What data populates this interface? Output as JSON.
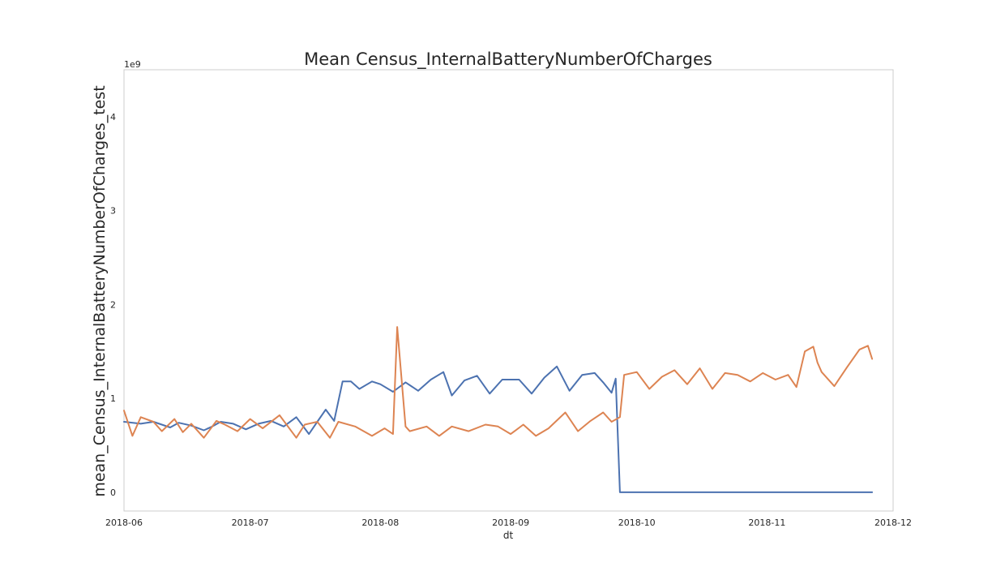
{
  "chart_data": {
    "type": "line",
    "title": "Mean Census_InternalBatteryNumberOfCharges",
    "xlabel": "dt",
    "ylabel": "mean_Census_InternalBatteryNumberOfCharges_test",
    "y_offset_label": "1e9",
    "x_range": [
      "2018-06-01",
      "2018-12-01"
    ],
    "ylim": [
      -0.2,
      4.5
    ],
    "x_ticks": [
      "2018-06",
      "2018-07",
      "2018-08",
      "2018-09",
      "2018-10",
      "2018-11",
      "2018-12"
    ],
    "x_tick_dates": [
      "2018-06-01",
      "2018-07-01",
      "2018-08-01",
      "2018-09-01",
      "2018-10-01",
      "2018-11-01",
      "2018-12-01"
    ],
    "y_ticks": [
      0,
      1,
      2,
      3,
      4
    ],
    "y_tick_labels": [
      "0",
      "1",
      "2",
      "3",
      "4"
    ],
    "grid": false,
    "series": [
      {
        "color": "#4c72b0",
        "x": [
          "2018-06-01",
          "2018-06-05",
          "2018-06-08",
          "2018-06-12",
          "2018-06-14",
          "2018-06-17",
          "2018-06-20",
          "2018-06-22",
          "2018-06-24",
          "2018-06-27",
          "2018-06-30",
          "2018-07-03",
          "2018-07-06",
          "2018-07-09",
          "2018-07-12",
          "2018-07-15",
          "2018-07-17",
          "2018-07-19",
          "2018-07-21",
          "2018-07-23",
          "2018-07-25",
          "2018-07-27",
          "2018-07-30",
          "2018-08-01",
          "2018-08-04",
          "2018-08-07",
          "2018-08-10",
          "2018-08-13",
          "2018-08-16",
          "2018-08-18",
          "2018-08-21",
          "2018-08-24",
          "2018-08-27",
          "2018-08-30",
          "2018-09-03",
          "2018-09-06",
          "2018-09-09",
          "2018-09-12",
          "2018-09-15",
          "2018-09-18",
          "2018-09-21",
          "2018-09-23",
          "2018-09-25",
          "2018-09-26",
          "2018-09-27",
          "2018-10-05",
          "2018-10-20",
          "2018-11-01",
          "2018-11-15",
          "2018-11-26"
        ],
        "values": [
          0.75,
          0.73,
          0.75,
          0.69,
          0.74,
          0.71,
          0.66,
          0.7,
          0.75,
          0.73,
          0.67,
          0.73,
          0.76,
          0.7,
          0.8,
          0.62,
          0.75,
          0.88,
          0.76,
          1.18,
          1.18,
          1.1,
          1.18,
          1.15,
          1.07,
          1.17,
          1.08,
          1.2,
          1.28,
          1.03,
          1.19,
          1.24,
          1.05,
          1.2,
          1.2,
          1.05,
          1.22,
          1.34,
          1.08,
          1.25,
          1.27,
          1.17,
          1.06,
          1.21,
          0,
          0,
          0,
          0,
          0,
          0
        ]
      },
      {
        "color": "#dd8452",
        "x": [
          "2018-06-01",
          "2018-06-03",
          "2018-06-05",
          "2018-06-08",
          "2018-06-10",
          "2018-06-13",
          "2018-06-15",
          "2018-06-17",
          "2018-06-20",
          "2018-06-23",
          "2018-06-25",
          "2018-06-28",
          "2018-07-01",
          "2018-07-04",
          "2018-07-08",
          "2018-07-12",
          "2018-07-14",
          "2018-07-17",
          "2018-07-20",
          "2018-07-22",
          "2018-07-26",
          "2018-07-30",
          "2018-08-02",
          "2018-08-04",
          "2018-08-05",
          "2018-08-07",
          "2018-08-08",
          "2018-08-12",
          "2018-08-15",
          "2018-08-18",
          "2018-08-22",
          "2018-08-26",
          "2018-08-29",
          "2018-09-01",
          "2018-09-04",
          "2018-09-07",
          "2018-09-10",
          "2018-09-14",
          "2018-09-17",
          "2018-09-20",
          "2018-09-23",
          "2018-09-25",
          "2018-09-27",
          "2018-09-28",
          "2018-10-01",
          "2018-10-04",
          "2018-10-07",
          "2018-10-10",
          "2018-10-13",
          "2018-10-16",
          "2018-10-19",
          "2018-10-22",
          "2018-10-25",
          "2018-10-28",
          "2018-10-31",
          "2018-11-03",
          "2018-11-06",
          "2018-11-08",
          "2018-11-10",
          "2018-11-12",
          "2018-11-13",
          "2018-11-14",
          "2018-11-17",
          "2018-11-20",
          "2018-11-23",
          "2018-11-25",
          "2018-11-26"
        ],
        "values": [
          0.87,
          0.6,
          0.8,
          0.75,
          0.65,
          0.78,
          0.64,
          0.73,
          0.58,
          0.76,
          0.72,
          0.65,
          0.78,
          0.68,
          0.82,
          0.58,
          0.72,
          0.75,
          0.58,
          0.75,
          0.7,
          0.6,
          0.68,
          0.62,
          1.76,
          0.7,
          0.65,
          0.7,
          0.6,
          0.7,
          0.65,
          0.72,
          0.7,
          0.62,
          0.72,
          0.6,
          0.68,
          0.85,
          0.65,
          0.76,
          0.85,
          0.75,
          0.8,
          1.25,
          1.28,
          1.1,
          1.23,
          1.3,
          1.15,
          1.32,
          1.1,
          1.27,
          1.25,
          1.18,
          1.27,
          1.2,
          1.25,
          1.12,
          1.5,
          1.55,
          1.38,
          1.28,
          1.13,
          1.33,
          1.52,
          1.56,
          1.42
        ]
      }
    ]
  }
}
